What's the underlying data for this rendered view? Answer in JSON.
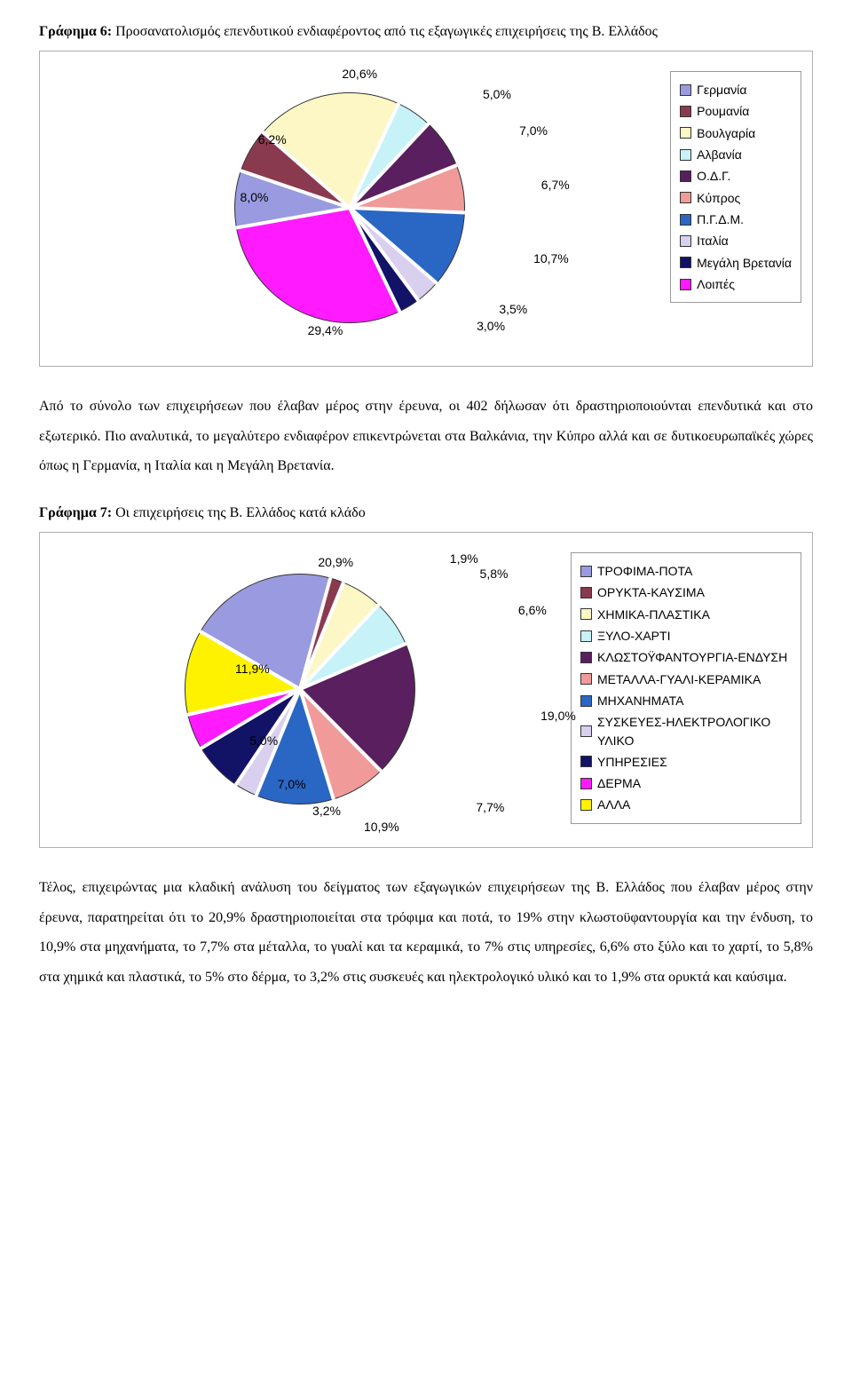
{
  "chart6": {
    "heading_bold": "Γράφημα 6:",
    "heading_rest": " Προσανατολισμός επενδυτικού ενδιαφέροντος από τις εξαγωγικές επιχειρήσεις της Β. Ελλάδος",
    "type": "pie",
    "background_color": "#ffffff",
    "border_color": "#b0b0b0",
    "label_font": "Arial",
    "label_fontsize": 14,
    "slices": [
      {
        "name": "Γερμανία",
        "value": 8.0,
        "label": "8,0%",
        "color": "#9a9ae0"
      },
      {
        "name": "Ρουμανία",
        "value": 6.2,
        "label": "6,2%",
        "color": "#8a3a4f"
      },
      {
        "name": "Βουλγαρία",
        "value": 20.6,
        "label": "20,6%",
        "color": "#fdf6c5"
      },
      {
        "name": "Αλβανία",
        "value": 5.0,
        "label": "5,0%",
        "color": "#c6f2f8"
      },
      {
        "name": "Ο.Δ.Γ.",
        "value": 7.0,
        "label": "7,0%",
        "color": "#5a1f5f"
      },
      {
        "name": "Κύπρος",
        "value": 6.7,
        "label": "6,7%",
        "color": "#f09a9a"
      },
      {
        "name": "Π.Γ.Δ.Μ.",
        "value": 10.7,
        "label": "10,7%",
        "color": "#2a66c4"
      },
      {
        "name": "Ιταλία",
        "value": 3.5,
        "label": "3,5%",
        "color": "#d8d0ee"
      },
      {
        "name": "Μεγάλη Βρετανία",
        "value": 3.0,
        "label": "3,0%",
        "color": "#121266"
      },
      {
        "name": "Λοιπές",
        "value": 29.4,
        "label": "29,4%",
        "color": "#ff1aff"
      }
    ],
    "slice_border_color": "#333333",
    "gap_color": "#ffffff",
    "pie_rotation_deg": -100
  },
  "para1": "Από το σύνολο των επιχειρήσεων που έλαβαν μέρος στην έρευνα, οι 402 δήλωσαν ότι δραστηριοποιούνται επενδυτικά και στο εξωτερικό. Πιο αναλυτικά, το μεγαλύτερο ενδιαφέρον επικεντρώνεται στα Βαλκάνια, την Κύπρο αλλά και σε δυτικοευρωπαϊκές χώρες όπως η Γερμανία, η Ιταλία και η Μεγάλη Βρετανία.",
  "chart7": {
    "heading_bold": "Γράφημα 7:",
    "heading_rest": " Οι επιχειρήσεις της Β. Ελλάδος κατά κλάδο",
    "type": "pie",
    "background_color": "#ffffff",
    "border_color": "#b0b0b0",
    "label_font": "Arial",
    "label_fontsize": 14,
    "slices": [
      {
        "name": "ΤΡΟΦΙΜΑ-ΠΟΤΑ",
        "value": 20.9,
        "label": "20,9%",
        "color": "#9a9ae0"
      },
      {
        "name": "ΟΡΥΚΤΑ-ΚΑΥΣΙΜΑ",
        "value": 1.9,
        "label": "1,9%",
        "color": "#8a3a4f"
      },
      {
        "name": "ΧΗΜΙΚΑ-ΠΛΑΣΤΙΚΑ",
        "value": 5.8,
        "label": "5,8%",
        "color": "#fdf6c5"
      },
      {
        "name": "ΞΥΛΟ-ΧΑΡΤΙ",
        "value": 6.6,
        "label": "6,6%",
        "color": "#c6f2f8"
      },
      {
        "name": "ΚΛΩΣΤΟΫΦΑΝΤΟΥΡΓΙΑ-ΕΝΔΥΣΗ",
        "value": 19.0,
        "label": "19,0%",
        "color": "#5a1f5f"
      },
      {
        "name": "ΜΕΤΑΛΛΑ-ΓΥΑΛΙ-ΚΕΡΑΜΙΚΑ",
        "value": 7.7,
        "label": "7,7%",
        "color": "#f09a9a"
      },
      {
        "name": "ΜΗΧΑΝΗΜΑΤΑ",
        "value": 10.9,
        "label": "10,9%",
        "color": "#2a66c4"
      },
      {
        "name": "ΣΥΣΚΕΥΕΣ-ΗΛΕΚΤΡΟΛΟΓΙΚΟ ΥΛΙΚΟ",
        "value": 3.2,
        "label": "3,2%",
        "color": "#d8d0ee"
      },
      {
        "name": "ΥΠΗΡΕΣΙΕΣ",
        "value": 7.0,
        "label": "7,0%",
        "color": "#121266"
      },
      {
        "name": "ΔΕΡΜΑ",
        "value": 5.0,
        "label": "5,0%",
        "color": "#ff1aff"
      },
      {
        "name": "ΑΛΛΑ",
        "value": 11.9,
        "label": "11,9%",
        "color": "#fff200"
      }
    ],
    "slice_border_color": "#333333",
    "gap_color": "#ffffff",
    "pie_rotation_deg": -60
  },
  "para2": "Τέλος, επιχειρώντας μια κλαδική ανάλυση του δείγματος των εξαγωγικών επιχειρήσεων της Β. Ελλάδος που έλαβαν μέρος στην έρευνα, παρατηρείται ότι το 20,9% δραστηριοποιείται στα τρόφιμα και ποτά, το 19% στην κλωστοϋφαντουργία και την ένδυση, το 10,9% στα μηχανήματα, το 7,7% στα μέταλλα, το γυαλί και τα κεραμικά, το 7% στις υπηρεσίες, 6,6% στο ξύλο και το χαρτί, το 5,8% στα χημικά και πλαστικά, το 5% στο δέρμα, το 3,2% στις συσκευές και ηλεκτρολογικό υλικό και το 1,9% στα ορυκτά και καύσιμα."
}
